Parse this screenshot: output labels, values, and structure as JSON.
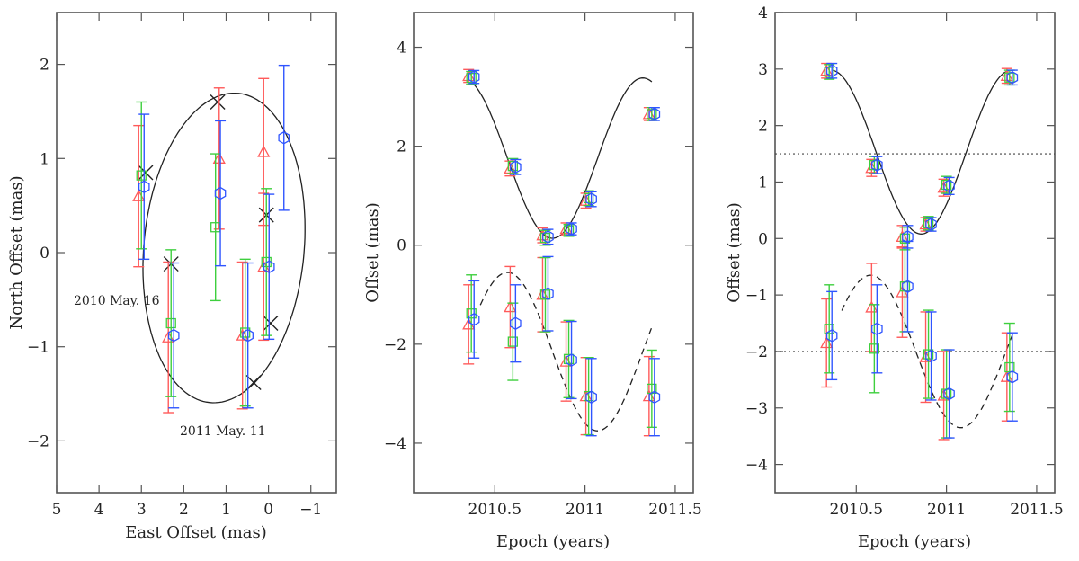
{
  "chart_data": [
    {
      "type": "scatter",
      "panel": "orbit",
      "xlabel": "East Offset (mas)",
      "ylabel": "North Offset (mas)",
      "xlim": [
        5,
        -1.6
      ],
      "ylim": [
        -2.55,
        2.55
      ],
      "xticks": [
        5,
        4,
        3,
        2,
        1,
        0,
        -1
      ],
      "xtick_labels": [
        "5",
        "4",
        "3",
        "2",
        "1",
        "0",
        "−1"
      ],
      "yticks": [
        -2,
        -1,
        0,
        1,
        2
      ],
      "ytick_labels": [
        "−2",
        "−1",
        "0",
        "1",
        "2"
      ],
      "annotations": [
        {
          "text": "2010 May. 16",
          "x": 3.2,
          "y": -0.55
        },
        {
          "text": "2011 May. 11",
          "x": 1.3,
          "y": -1.95
        }
      ],
      "model_orbit": {
        "center": [
          1.05,
          0.05
        ],
        "semi_x": 1.95,
        "semi_y": 1.6,
        "angle_deg": -20
      },
      "model_positions": [
        {
          "x": 2.9,
          "y": 0.85
        },
        {
          "x": 1.2,
          "y": 1.6
        },
        {
          "x": 0.05,
          "y": 0.4
        },
        {
          "x": -0.05,
          "y": -0.75
        },
        {
          "x": 0.35,
          "y": -1.38
        },
        {
          "x": 2.3,
          "y": -0.12
        }
      ],
      "series": [
        {
          "name": "red",
          "color": "#ff5a5a",
          "marker": "triangle",
          "points": [
            {
              "x": 3.0,
              "y": 0.6,
              "yerr": 0.75
            },
            {
              "x": 1.1,
              "y": 1.0,
              "yerr": 0.75
            },
            {
              "x": 0.05,
              "y": 1.07,
              "yerr": 0.78
            },
            {
              "x": 2.3,
              "y": -0.9,
              "yerr": 0.8
            },
            {
              "x": 0.55,
              "y": -0.88,
              "yerr": 0.78
            },
            {
              "x": 0.05,
              "y": -0.15,
              "yerr": 0.78
            }
          ]
        },
        {
          "name": "green",
          "color": "#3ecf3e",
          "marker": "square",
          "points": [
            {
              "x": 3.0,
              "y": 0.82,
              "yerr": 0.78
            },
            {
              "x": 1.25,
              "y": 0.27,
              "yerr": 0.78
            },
            {
              "x": 0.05,
              "y": -0.1,
              "yerr": 0.78
            },
            {
              "x": 2.3,
              "y": -0.75,
              "yerr": 0.78
            },
            {
              "x": 0.55,
              "y": -0.85,
              "yerr": 0.78
            }
          ]
        },
        {
          "name": "blue",
          "color": "#2f55ff",
          "marker": "hexagon",
          "points": [
            {
              "x": 3.0,
              "y": 0.7,
              "yerr": 0.77
            },
            {
              "x": 1.2,
              "y": 0.63,
              "yerr": 0.77
            },
            {
              "x": -0.3,
              "y": 1.22,
              "yerr": 0.77
            },
            {
              "x": 0.05,
              "y": -0.15,
              "yerr": 0.77
            },
            {
              "x": 2.3,
              "y": -0.88,
              "yerr": 0.77
            },
            {
              "x": 0.55,
              "y": -0.88,
              "yerr": 0.77
            }
          ]
        }
      ]
    },
    {
      "type": "scatter",
      "panel": "offset-vs-epoch",
      "xlabel": "Epoch (years)",
      "ylabel": "Offset (mas)",
      "xlim": [
        2010.05,
        2011.6
      ],
      "ylim": [
        -5,
        4.7
      ],
      "xticks": [
        2010.5,
        2011,
        2011.5
      ],
      "xtick_labels": [
        "2010.5",
        "2011",
        "2011.5"
      ],
      "yticks": [
        -4,
        -2,
        0,
        2,
        4
      ],
      "ytick_labels": [
        "−4",
        "−2",
        "0",
        "2",
        "4"
      ],
      "model_curves": [
        {
          "style": "solid",
          "mean": 1.76,
          "amp": 1.62,
          "period": 1.0,
          "min_epoch": 2010.82,
          "range": [
            2010.37,
            2011.37
          ]
        },
        {
          "style": "dashed",
          "mean": -2.15,
          "amp": 1.6,
          "period": 1.0,
          "min_epoch": 2011.07,
          "range": [
            2010.42,
            2011.37
          ]
        }
      ],
      "series": [
        {
          "name": "red",
          "color": "#ff5a5a",
          "marker": "triangle",
          "points": [
            {
              "x": 2010.37,
              "y": 3.42,
              "yerr": 0.13
            },
            {
              "x": 2010.6,
              "y": 1.55,
              "yerr": 0.15
            },
            {
              "x": 2010.78,
              "y": 0.2,
              "yerr": 0.15
            },
            {
              "x": 2010.91,
              "y": 0.33,
              "yerr": 0.12
            },
            {
              "x": 2011.02,
              "y": 0.9,
              "yerr": 0.15
            },
            {
              "x": 2011.37,
              "y": 2.65,
              "yerr": 0.13
            },
            {
              "x": 2010.37,
              "y": -1.6,
              "yerr": 0.8
            },
            {
              "x": 2010.6,
              "y": -1.25,
              "yerr": 0.82
            },
            {
              "x": 2010.78,
              "y": -1.0,
              "yerr": 0.75
            },
            {
              "x": 2010.91,
              "y": -2.35,
              "yerr": 0.8
            },
            {
              "x": 2011.02,
              "y": -3.05,
              "yerr": 0.78
            },
            {
              "x": 2011.37,
              "y": -3.05,
              "yerr": 0.8
            }
          ]
        },
        {
          "name": "green",
          "color": "#3ecf3e",
          "marker": "square",
          "points": [
            {
              "x": 2010.37,
              "y": 3.38,
              "yerr": 0.13
            },
            {
              "x": 2010.6,
              "y": 1.6,
              "yerr": 0.15
            },
            {
              "x": 2010.78,
              "y": 0.15,
              "yerr": 0.15
            },
            {
              "x": 2010.91,
              "y": 0.3,
              "yerr": 0.12
            },
            {
              "x": 2011.02,
              "y": 0.95,
              "yerr": 0.15
            },
            {
              "x": 2011.37,
              "y": 2.65,
              "yerr": 0.13
            },
            {
              "x": 2010.37,
              "y": -1.38,
              "yerr": 0.78
            },
            {
              "x": 2010.6,
              "y": -1.95,
              "yerr": 0.78
            },
            {
              "x": 2010.78,
              "y": -1.0,
              "yerr": 0.75
            },
            {
              "x": 2010.91,
              "y": -2.3,
              "yerr": 0.78
            },
            {
              "x": 2011.02,
              "y": -3.05,
              "yerr": 0.78
            },
            {
              "x": 2011.37,
              "y": -2.9,
              "yerr": 0.78
            }
          ]
        },
        {
          "name": "blue",
          "color": "#2f55ff",
          "marker": "hexagon",
          "points": [
            {
              "x": 2010.37,
              "y": 3.4,
              "yerr": 0.13
            },
            {
              "x": 2010.6,
              "y": 1.58,
              "yerr": 0.15
            },
            {
              "x": 2010.78,
              "y": 0.17,
              "yerr": 0.15
            },
            {
              "x": 2010.91,
              "y": 0.33,
              "yerr": 0.12
            },
            {
              "x": 2011.02,
              "y": 0.93,
              "yerr": 0.15
            },
            {
              "x": 2011.37,
              "y": 2.65,
              "yerr": 0.13
            },
            {
              "x": 2010.37,
              "y": -1.5,
              "yerr": 0.78
            },
            {
              "x": 2010.6,
              "y": -1.58,
              "yerr": 0.78
            },
            {
              "x": 2010.78,
              "y": -0.98,
              "yerr": 0.75
            },
            {
              "x": 2010.91,
              "y": -2.32,
              "yerr": 0.78
            },
            {
              "x": 2011.02,
              "y": -3.07,
              "yerr": 0.78
            },
            {
              "x": 2011.37,
              "y": -3.07,
              "yerr": 0.78
            }
          ]
        }
      ]
    },
    {
      "type": "scatter",
      "panel": "offset-vs-epoch-2",
      "xlabel": "Epoch (years)",
      "ylabel": "Offset (mas)",
      "xlim": [
        2010.05,
        2011.6
      ],
      "ylim": [
        -4.5,
        4
      ],
      "xticks": [
        2010.5,
        2011,
        2011.5
      ],
      "xtick_labels": [
        "2010.5",
        "2011",
        "2011.5"
      ],
      "yticks": [
        -4,
        -3,
        -2,
        -1,
        0,
        1,
        2,
        3,
        4
      ],
      "ytick_labels": [
        "−4",
        "−3",
        "−2",
        "−1",
        "0",
        "1",
        "2",
        "3",
        "4"
      ],
      "reference_lines": [
        {
          "y": 1.5,
          "style": "dotted"
        },
        {
          "y": -2.0,
          "style": "dotted"
        }
      ],
      "model_curves": [
        {
          "style": "solid",
          "mean": 1.53,
          "amp": 1.45,
          "period": 1.0,
          "min_epoch": 2010.86,
          "range": [
            2010.37,
            2011.37
          ]
        },
        {
          "style": "dashed",
          "mean": -2.0,
          "amp": 1.35,
          "period": 1.0,
          "min_epoch": 2011.08,
          "range": [
            2010.42,
            2011.37
          ]
        }
      ],
      "series": [
        {
          "name": "red",
          "color": "#ff5a5a",
          "marker": "triangle",
          "points": [
            {
              "x": 2010.35,
              "y": 2.97,
              "yerr": 0.13
            },
            {
              "x": 2010.6,
              "y": 1.25,
              "yerr": 0.15
            },
            {
              "x": 2010.77,
              "y": 0.03,
              "yerr": 0.2
            },
            {
              "x": 2010.9,
              "y": 0.25,
              "yerr": 0.12
            },
            {
              "x": 2011.0,
              "y": 0.9,
              "yerr": 0.15
            },
            {
              "x": 2011.35,
              "y": 2.88,
              "yerr": 0.13
            },
            {
              "x": 2010.35,
              "y": -1.85,
              "yerr": 0.78
            },
            {
              "x": 2010.6,
              "y": -1.22,
              "yerr": 0.78
            },
            {
              "x": 2010.77,
              "y": -0.95,
              "yerr": 0.8
            },
            {
              "x": 2010.9,
              "y": -2.1,
              "yerr": 0.8
            },
            {
              "x": 2011.0,
              "y": -2.78,
              "yerr": 0.78
            },
            {
              "x": 2011.35,
              "y": -2.45,
              "yerr": 0.78
            }
          ]
        },
        {
          "name": "green",
          "color": "#3ecf3e",
          "marker": "square",
          "points": [
            {
              "x": 2010.35,
              "y": 2.95,
              "yerr": 0.13
            },
            {
              "x": 2010.6,
              "y": 1.3,
              "yerr": 0.15
            },
            {
              "x": 2010.77,
              "y": 0.0,
              "yerr": 0.2
            },
            {
              "x": 2010.9,
              "y": 0.27,
              "yerr": 0.12
            },
            {
              "x": 2011.0,
              "y": 0.95,
              "yerr": 0.15
            },
            {
              "x": 2011.35,
              "y": 2.85,
              "yerr": 0.13
            },
            {
              "x": 2010.35,
              "y": -1.6,
              "yerr": 0.78
            },
            {
              "x": 2010.6,
              "y": -1.95,
              "yerr": 0.78
            },
            {
              "x": 2010.77,
              "y": -0.85,
              "yerr": 0.8
            },
            {
              "x": 2010.9,
              "y": -2.05,
              "yerr": 0.78
            },
            {
              "x": 2011.0,
              "y": -2.75,
              "yerr": 0.78
            },
            {
              "x": 2011.35,
              "y": -2.28,
              "yerr": 0.78
            }
          ]
        },
        {
          "name": "blue",
          "color": "#2f55ff",
          "marker": "hexagon",
          "points": [
            {
              "x": 2010.35,
              "y": 2.97,
              "yerr": 0.13
            },
            {
              "x": 2010.6,
              "y": 1.3,
              "yerr": 0.15
            },
            {
              "x": 2010.77,
              "y": 0.03,
              "yerr": 0.2
            },
            {
              "x": 2010.9,
              "y": 0.25,
              "yerr": 0.12
            },
            {
              "x": 2011.0,
              "y": 0.93,
              "yerr": 0.15
            },
            {
              "x": 2011.35,
              "y": 2.85,
              "yerr": 0.13
            },
            {
              "x": 2010.35,
              "y": -1.72,
              "yerr": 0.78
            },
            {
              "x": 2010.6,
              "y": -1.6,
              "yerr": 0.78
            },
            {
              "x": 2010.77,
              "y": -0.85,
              "yerr": 0.8
            },
            {
              "x": 2010.9,
              "y": -2.08,
              "yerr": 0.78
            },
            {
              "x": 2011.0,
              "y": -2.75,
              "yerr": 0.78
            },
            {
              "x": 2011.35,
              "y": -2.45,
              "yerr": 0.78
            }
          ]
        }
      ]
    }
  ]
}
